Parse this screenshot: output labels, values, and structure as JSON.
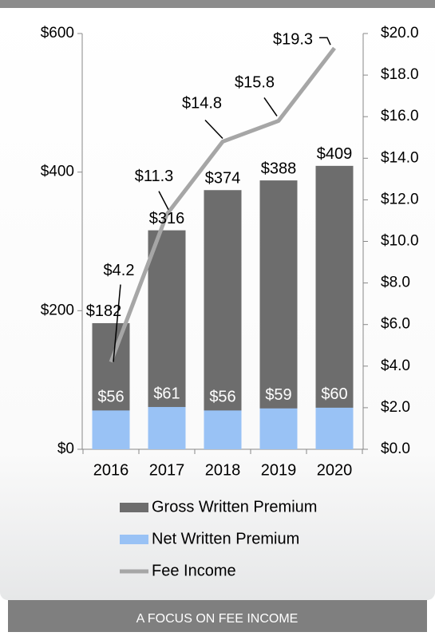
{
  "chart_data": {
    "type": "bar-line",
    "categories": [
      "2016",
      "2017",
      "2018",
      "2019",
      "2020"
    ],
    "series": [
      {
        "name": "Gross Written Premium",
        "color": "#6d6d6d",
        "values": [
          182,
          316,
          374,
          388,
          409
        ],
        "value_labels": [
          "$182",
          "$316",
          "$374",
          "$388",
          "$409"
        ]
      },
      {
        "name": "Net Written Premium",
        "color": "#99c2f5",
        "values": [
          56,
          61,
          56,
          59,
          60
        ],
        "value_labels": [
          "$56",
          "$61",
          "$56",
          "$59",
          "$60"
        ]
      },
      {
        "name": "Fee Income",
        "color": "#a6a6a6",
        "axis": "y2",
        "values": [
          4.2,
          11.3,
          14.8,
          15.8,
          19.3
        ],
        "value_labels": [
          "$4.2",
          "$11.3",
          "$14.8",
          "$15.8",
          "$19.3"
        ]
      }
    ],
    "ylim": [
      0,
      600
    ],
    "yticks": [
      {
        "value": 0,
        "label": "$0"
      },
      {
        "value": 200,
        "label": "$200"
      },
      {
        "value": 400,
        "label": "$400"
      },
      {
        "value": 600,
        "label": "$600"
      }
    ],
    "y2lim": [
      0,
      20
    ],
    "y2ticks": [
      {
        "value": 0,
        "label": "$0.0"
      },
      {
        "value": 2,
        "label": "$2.0"
      },
      {
        "value": 4,
        "label": "$4.0"
      },
      {
        "value": 6,
        "label": "$6.0"
      },
      {
        "value": 8,
        "label": "$8.0"
      },
      {
        "value": 10,
        "label": "$10.0"
      },
      {
        "value": 12,
        "label": "$12.0"
      },
      {
        "value": 14,
        "label": "$14.0"
      },
      {
        "value": 16,
        "label": "$16.0"
      },
      {
        "value": 18,
        "label": "$18.0"
      },
      {
        "value": 20,
        "label": "$20.0"
      }
    ]
  },
  "footer": "A FOCUS ON FEE INCOME"
}
